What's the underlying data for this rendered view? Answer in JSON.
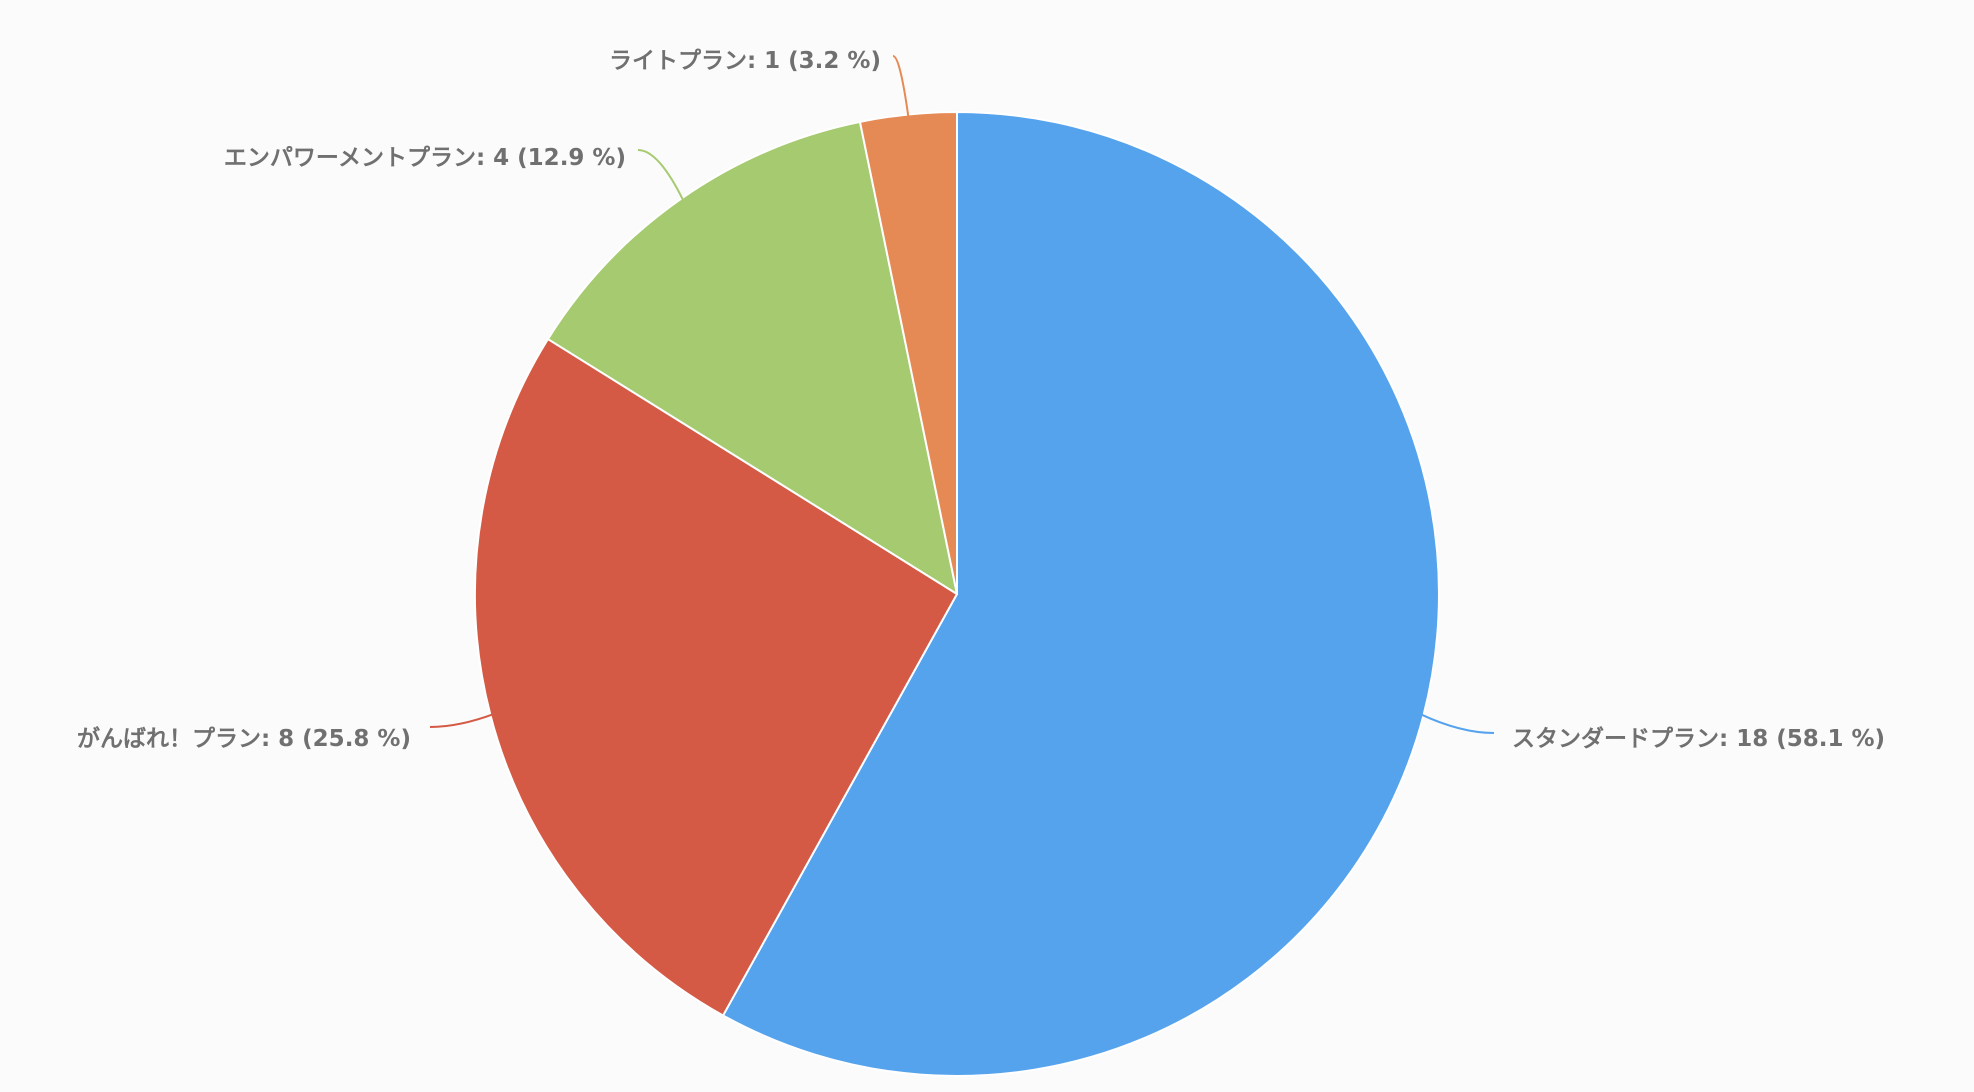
{
  "chart_data": {
    "type": "pie",
    "slices": [
      {
        "name": "スタンダードプラン",
        "value": 18,
        "percent": 58.1,
        "label": "スタンダードプラン: 18 (58.1 %)",
        "color": "#56a3ed"
      },
      {
        "name": "がんばれ！プラン",
        "value": 8,
        "percent": 25.8,
        "label": "がんばれ！プラン: 8 (25.8 %)",
        "color": "#d45a45"
      },
      {
        "name": "エンパワーメントプラン",
        "value": 4,
        "percent": 12.9,
        "label": "エンパワーメントプラン: 4 (12.9 %)",
        "color": "#a5ca6f"
      },
      {
        "name": "ライトプラン",
        "value": 1,
        "percent": 3.2,
        "label": "ライトプラン: 1 (3.2 %)",
        "color": "#e68a55"
      }
    ],
    "start_angle": "12 o'clock",
    "direction": "clockwise",
    "legend": "none"
  }
}
